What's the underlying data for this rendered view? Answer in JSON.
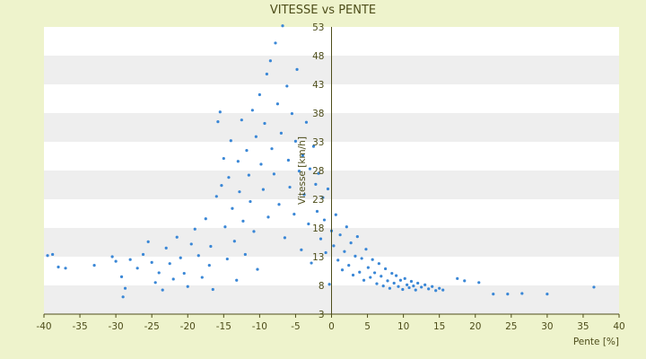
{
  "chart_data": {
    "type": "scatter",
    "title": "VITESSE vs PENTE",
    "xlabel": "Pente [%]",
    "ylabel": "Vitesse [km/h]",
    "xlim": [
      -40,
      40
    ],
    "ylim": [
      3,
      53
    ],
    "x_ticks": [
      -40,
      -35,
      -30,
      -25,
      -20,
      -15,
      -10,
      -5,
      0,
      5,
      10,
      15,
      20,
      25,
      30,
      35,
      40
    ],
    "y_ticks": [
      3,
      8,
      13,
      18,
      23,
      28,
      33,
      38,
      43,
      48,
      53
    ],
    "grid": "horizontal alternating bands",
    "legend": "none",
    "point_color": "#3a87d6",
    "band_color": "#eeeeee",
    "series": [
      {
        "points": [
          [
            -39.5,
            13.2
          ],
          [
            -38.8,
            13.4
          ],
          [
            -38,
            11.2
          ],
          [
            -37,
            11
          ],
          [
            -33,
            11.5
          ],
          [
            -30.5,
            13
          ],
          [
            -30,
            12.2
          ],
          [
            -29.2,
            9.5
          ],
          [
            -29,
            6
          ],
          [
            -28.7,
            7.5
          ],
          [
            -28,
            12.5
          ],
          [
            -27,
            11
          ],
          [
            -26.2,
            13.4
          ],
          [
            -25.5,
            15.6
          ],
          [
            -25,
            12
          ],
          [
            -24.5,
            8.5
          ],
          [
            -24,
            10.2
          ],
          [
            -23.5,
            7.2
          ],
          [
            -23,
            14.5
          ],
          [
            -22.5,
            11.8
          ],
          [
            -22,
            9.1
          ],
          [
            -21.5,
            16.4
          ],
          [
            -21,
            12.8
          ],
          [
            -20.5,
            10.1
          ],
          [
            -20,
            7.8
          ],
          [
            -19.5,
            15.2
          ],
          [
            -19,
            17.8
          ],
          [
            -18.5,
            13.2
          ],
          [
            -18,
            9.4
          ],
          [
            -17.5,
            19.6
          ],
          [
            -17,
            11.5
          ],
          [
            -16.8,
            14.8
          ],
          [
            -16.5,
            7.3
          ],
          [
            -16,
            23.5
          ],
          [
            -15.8,
            36.5
          ],
          [
            -15.5,
            38.2
          ],
          [
            -15.3,
            25.4
          ],
          [
            -15,
            30.1
          ],
          [
            -14.8,
            18.2
          ],
          [
            -14.5,
            12.6
          ],
          [
            -14.3,
            26.8
          ],
          [
            -14,
            33.2
          ],
          [
            -13.8,
            21.4
          ],
          [
            -13.5,
            15.7
          ],
          [
            -13.2,
            8.9
          ],
          [
            -13,
            29.6
          ],
          [
            -12.8,
            24.3
          ],
          [
            -12.5,
            36.8
          ],
          [
            -12.3,
            19.2
          ],
          [
            -12,
            13.4
          ],
          [
            -11.8,
            31.5
          ],
          [
            -11.5,
            27.2
          ],
          [
            -11.3,
            22.6
          ],
          [
            -11,
            38.5
          ],
          [
            -10.8,
            17.4
          ],
          [
            -10.5,
            33.9
          ],
          [
            -10.3,
            10.8
          ],
          [
            -10,
            41.2
          ],
          [
            -9.8,
            29.1
          ],
          [
            -9.5,
            24.7
          ],
          [
            -9.3,
            36.2
          ],
          [
            -9,
            44.8
          ],
          [
            -8.8,
            19.9
          ],
          [
            -8.5,
            47.1
          ],
          [
            -8.3,
            31.8
          ],
          [
            -8,
            27.4
          ],
          [
            -7.8,
            50.2
          ],
          [
            -7.5,
            39.6
          ],
          [
            -7.3,
            22.1
          ],
          [
            -7,
            34.5
          ],
          [
            -6.8,
            53.2
          ],
          [
            -6.5,
            16.3
          ],
          [
            -6.2,
            42.7
          ],
          [
            -6,
            29.8
          ],
          [
            -5.8,
            25.1
          ],
          [
            -5.5,
            37.9
          ],
          [
            -5.2,
            20.4
          ],
          [
            -5,
            33.1
          ],
          [
            -4.8,
            45.6
          ],
          [
            -4.5,
            27.9
          ],
          [
            -4.2,
            14.2
          ],
          [
            -4,
            30.6
          ],
          [
            -3.8,
            23.8
          ],
          [
            -3.5,
            36.4
          ],
          [
            -3.2,
            18.7
          ],
          [
            -3,
            28.3
          ],
          [
            -2.8,
            11.9
          ],
          [
            -2.5,
            32.2
          ],
          [
            -2.2,
            25.6
          ],
          [
            -2,
            20.9
          ],
          [
            -1.8,
            27.5
          ],
          [
            -1.5,
            16.1
          ],
          [
            -1.2,
            23.3
          ],
          [
            -1,
            19.4
          ],
          [
            -0.8,
            13.7
          ],
          [
            -0.5,
            24.8
          ],
          [
            -0.3,
            8.2
          ],
          [
            0,
            17.5
          ],
          [
            0.3,
            14.9
          ],
          [
            0.6,
            20.3
          ],
          [
            0.9,
            12.4
          ],
          [
            1.2,
            16.8
          ],
          [
            1.5,
            10.7
          ],
          [
            1.8,
            13.9
          ],
          [
            2.1,
            18.2
          ],
          [
            2.4,
            11.5
          ],
          [
            2.7,
            15.4
          ],
          [
            3,
            9.8
          ],
          [
            3.3,
            13.1
          ],
          [
            3.6,
            16.5
          ],
          [
            3.9,
            10.3
          ],
          [
            4.2,
            12.7
          ],
          [
            4.5,
            8.9
          ],
          [
            4.8,
            14.3
          ],
          [
            5.1,
            11.1
          ],
          [
            5.4,
            9.4
          ],
          [
            5.7,
            12.5
          ],
          [
            6,
            10.2
          ],
          [
            6.3,
            8.3
          ],
          [
            6.6,
            11.8
          ],
          [
            6.9,
            9.6
          ],
          [
            7.2,
            7.9
          ],
          [
            7.5,
            10.9
          ],
          [
            7.8,
            8.8
          ],
          [
            8.1,
            7.5
          ],
          [
            8.4,
            10.1
          ],
          [
            8.7,
            8.4
          ],
          [
            9,
            9.7
          ],
          [
            9.3,
            7.8
          ],
          [
            9.6,
            8.9
          ],
          [
            9.9,
            7.3
          ],
          [
            10.2,
            9.2
          ],
          [
            10.5,
            8.1
          ],
          [
            10.8,
            7.6
          ],
          [
            11.1,
            8.7
          ],
          [
            11.4,
            7.9
          ],
          [
            11.7,
            7.2
          ],
          [
            12,
            8.4
          ],
          [
            12.5,
            7.7
          ],
          [
            13,
            8.1
          ],
          [
            13.5,
            7.4
          ],
          [
            14,
            7.8
          ],
          [
            14.5,
            7.1
          ],
          [
            15,
            7.5
          ],
          [
            15.5,
            7.2
          ],
          [
            17.5,
            9.2
          ],
          [
            18.5,
            8.8
          ],
          [
            20.5,
            8.5
          ],
          [
            22.5,
            6.5
          ],
          [
            24.5,
            6.5
          ],
          [
            26.5,
            6.6
          ],
          [
            30,
            6.5
          ],
          [
            36.5,
            7.7
          ]
        ]
      }
    ]
  }
}
